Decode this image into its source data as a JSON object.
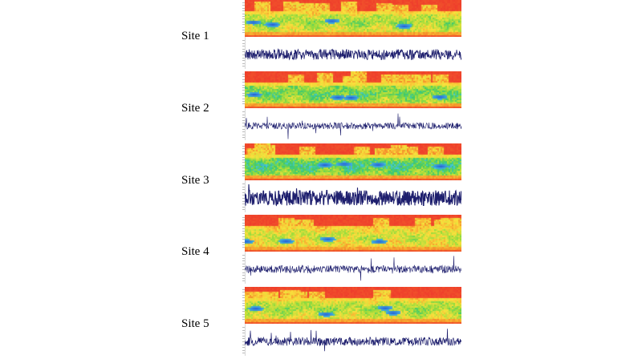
{
  "figure": {
    "sites": [
      {
        "label": "Site 1",
        "seed": 11,
        "amp": 0.55,
        "lw": 0.8,
        "spikes": 0.9,
        "band": 0.45,
        "peaks": 0.55,
        "base": 0.5
      },
      {
        "label": "Site 2",
        "seed": 23,
        "amp": 0.35,
        "lw": 0.6,
        "spikes": 1.3,
        "band": 0.55,
        "peaks": 0.9,
        "base": 0.55
      },
      {
        "label": "Site 3",
        "seed": 37,
        "amp": 0.8,
        "lw": 1.1,
        "spikes": 0.6,
        "band": 0.6,
        "peaks": 0.8,
        "base": 0.6
      },
      {
        "label": "Site 4",
        "seed": 41,
        "amp": 0.4,
        "lw": 0.6,
        "spikes": 1.6,
        "band": 0.4,
        "peaks": 0.35,
        "base": 0.45
      },
      {
        "label": "Site 5",
        "seed": 53,
        "amp": 0.45,
        "lw": 0.7,
        "spikes": 1.5,
        "band": 0.45,
        "peaks": 0.4,
        "base": 0.5
      }
    ]
  },
  "chart_data": {
    "type": "heatmap",
    "title": "",
    "panels": [
      "Site 1",
      "Site 2",
      "Site 3",
      "Site 4",
      "Site 5"
    ],
    "description_series": [
      {
        "name": "Wavelet spectrogram",
        "type": "heatmap"
      },
      {
        "name": "Time-series signal",
        "type": "line"
      }
    ]
  },
  "colors": {
    "wave": "#1e1f6e",
    "spec_hot": "#ef3b2c",
    "spec_cold": "#1f5fd6"
  }
}
